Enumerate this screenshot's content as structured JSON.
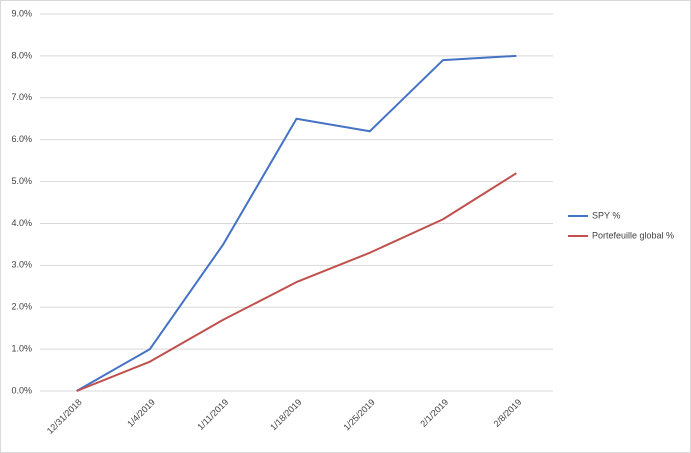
{
  "chart_data": {
    "type": "line",
    "categories": [
      "12/31/2018",
      "1/4/2019",
      "1/11/2019",
      "1/18/2019",
      "1/25/2019",
      "2/1/2019",
      "2/8/2019"
    ],
    "series": [
      {
        "name": "SPY %",
        "color": "#4472c4",
        "values": [
          0,
          1.0,
          3.5,
          6.5,
          6.2,
          7.9,
          8.0
        ]
      },
      {
        "name": "Portefeuille global %",
        "color": "#c0504d",
        "values": [
          0,
          0.7,
          1.7,
          2.6,
          3.3,
          4.1,
          5.2
        ]
      }
    ],
    "ylim": [
      0,
      9
    ],
    "yticks": [
      {
        "value": 0,
        "label": "0.0%"
      },
      {
        "value": 1,
        "label": "1.0%"
      },
      {
        "value": 2,
        "label": "2.0%"
      },
      {
        "value": 3,
        "label": "3.0%"
      },
      {
        "value": 4,
        "label": "4.0%"
      },
      {
        "value": 5,
        "label": "5.0%"
      },
      {
        "value": 6,
        "label": "6.0%"
      },
      {
        "value": 7,
        "label": "7.0%"
      },
      {
        "value": 8,
        "label": "8.0%"
      },
      {
        "value": 9,
        "label": "9.0%"
      }
    ],
    "grid": true,
    "legend": "right"
  }
}
